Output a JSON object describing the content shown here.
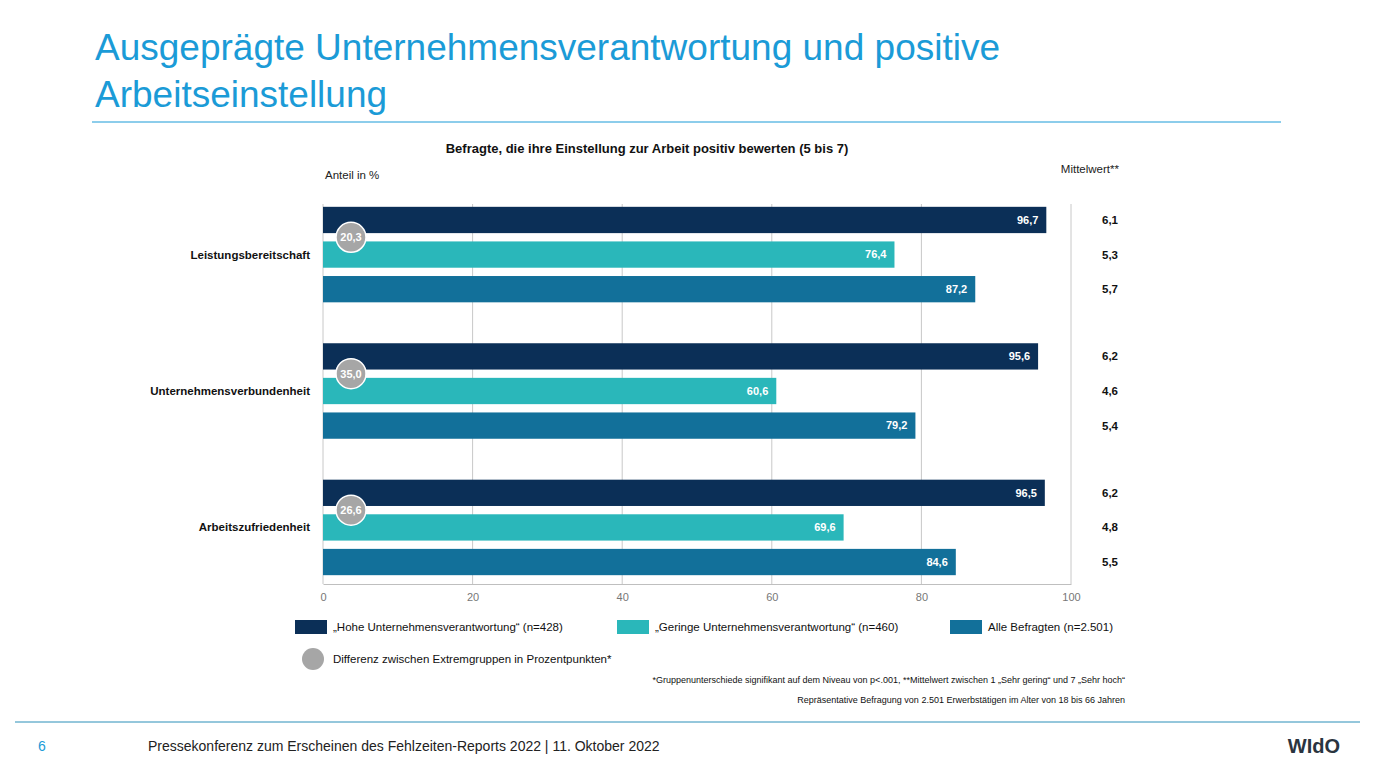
{
  "slide": {
    "title": [
      "Ausgeprägte Unternehmensverantwortung und positive",
      "Arbeitseinstellung"
    ],
    "page_number": "6",
    "footer": "Pressekonferenz zum Erscheinen des Fehlzeiten-Reports 2022 | 11. Oktober 2022",
    "logo": "WIdO"
  },
  "chart_data": {
    "type": "bar",
    "orientation": "horizontal",
    "title": "Befragte, die ihre Einstellung zur Arbeit positiv bewerten (5 bis 7)",
    "x_label": "Anteil in %",
    "mean_label": "Mittelwert**",
    "categories": [
      "Leistungsbereitschaft",
      "Unternehmensverbundenheit",
      "Arbeitszufriedenheit"
    ],
    "series": [
      {
        "name": "„Hohe Unternehmensverantwortung“ (n=428)",
        "color": "#0b2f57",
        "values": [
          96.7,
          95.6,
          96.5
        ],
        "value_labels": [
          "96,7",
          "95,6",
          "96,5"
        ],
        "means": [
          6.1,
          6.2,
          6.2
        ],
        "mean_labels": [
          "6,1",
          "6,2",
          "6,2"
        ]
      },
      {
        "name": "„Geringe Unternehmensverantwortung“ (n=460)",
        "color": "#2ab7ba",
        "values": [
          76.4,
          60.6,
          69.6
        ],
        "value_labels": [
          "76,4",
          "60,6",
          "69,6"
        ],
        "means": [
          5.3,
          4.6,
          4.8
        ],
        "mean_labels": [
          "5,3",
          "4,6",
          "4,8"
        ]
      },
      {
        "name": "Alle Befragten (n=2.501)",
        "color": "#12709a",
        "values": [
          87.2,
          79.2,
          84.6
        ],
        "value_labels": [
          "87,2",
          "79,2",
          "84,6"
        ],
        "means": [
          5.7,
          5.4,
          5.5
        ],
        "mean_labels": [
          "5,7",
          "5,4",
          "5,5"
        ]
      }
    ],
    "differences": [
      20.3,
      35.0,
      26.6
    ],
    "difference_labels": [
      "20,3",
      "35,0",
      "26,6"
    ],
    "difference_name": "Differenz zwischen Extremgruppen in Prozentpunkten*",
    "difference_color": "#a6a6a6",
    "notes": [
      "*Gruppenunterschiede signifikant auf dem Niveau von p<.001, **Mittelwert zwischen 1 „Sehr gering“ und 7 „Sehr hoch“",
      "Repräsentative Befragung von 2.501 Erwerbstätigen im Alter von 18 bis 66 Jahren"
    ],
    "xlim": [
      0,
      100
    ],
    "xticks": [
      0,
      20,
      40,
      60,
      80,
      100
    ],
    "grid": true,
    "data_labels": true,
    "legend": "bottom"
  }
}
